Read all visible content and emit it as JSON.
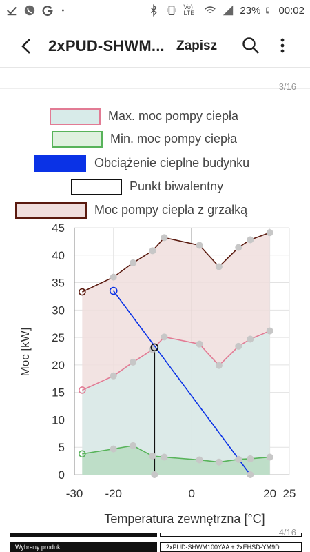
{
  "status_bar": {
    "battery": "23%",
    "time": "00:02",
    "network": "Vo) LTE",
    "icons": [
      "check-icon",
      "phone-icon",
      "g-icon",
      "dot-icon",
      "bluetooth-icon",
      "vibrate-icon",
      "lte-icon",
      "wifi-icon",
      "signal-icon",
      "battery-icon"
    ]
  },
  "appbar": {
    "title": "2xPUD-SHWM...",
    "save_label": "Zapisz",
    "icons": [
      "back-icon",
      "search-icon",
      "more-vert-icon"
    ]
  },
  "pager": {
    "first": "3/16",
    "second": "4/16"
  },
  "legend": [
    {
      "label": "Max. moc pompy ciepła",
      "fill": "#d8ebe9",
      "stroke": "#e27b94"
    },
    {
      "label": "Min. moc pompy ciepła",
      "fill": "#dff1df",
      "stroke": "#58b35a"
    },
    {
      "label": "Obciążenie cieplne budynku",
      "fill": "#0a32e6",
      "stroke": "#0a32e6"
    },
    {
      "label": "Punkt biwalentny",
      "fill": "#ffffff",
      "stroke": "#111111"
    },
    {
      "label": "Moc pompy ciepła z grzałką",
      "fill": "#f0dedd",
      "stroke": "#5a1a0f"
    }
  ],
  "chart_data": {
    "type": "area",
    "xlabel": "Temperatura zewnętrzna [°C]",
    "ylabel": "Moc [kW]",
    "xlim": [
      -30,
      25
    ],
    "ylim": [
      0,
      45
    ],
    "x_ticks": [
      -30,
      -20,
      0,
      20,
      25
    ],
    "y_ticks": [
      0,
      5,
      10,
      15,
      20,
      25,
      30,
      35,
      40,
      45
    ],
    "grid": true,
    "series": [
      {
        "name": "Moc pompy ciepła z grzałką",
        "color": "#5a1a0f",
        "fill": "#f0dedd",
        "x": [
          -28,
          -20,
          -15,
          -10,
          -7,
          2,
          7,
          12,
          15,
          20
        ],
        "y": [
          33.3,
          36.0,
          38.6,
          40.8,
          43.2,
          41.8,
          37.9,
          41.4,
          42.8,
          44.1
        ]
      },
      {
        "name": "Max. moc pompy ciepła",
        "color": "#e27b94",
        "fill": "#d8ebe9",
        "x": [
          -28,
          -20,
          -15,
          -10,
          -7,
          2,
          7,
          12,
          15,
          20
        ],
        "y": [
          15.4,
          18.0,
          20.5,
          22.8,
          25.1,
          23.8,
          19.9,
          23.4,
          24.7,
          26.2
        ]
      },
      {
        "name": "Min. moc pompy ciepła",
        "color": "#58b35a",
        "fill": "#b9dcc2",
        "x": [
          -28,
          -20,
          -15,
          -10,
          -7,
          2,
          7,
          12,
          15,
          20
        ],
        "y": [
          3.8,
          4.7,
          5.3,
          3.4,
          3.2,
          2.7,
          2.3,
          2.8,
          2.9,
          3.2
        ]
      },
      {
        "name": "Obciążenie cieplne budynku",
        "color": "#0a32e6",
        "x": [
          -20,
          15
        ],
        "y": [
          33.5,
          0
        ]
      }
    ],
    "bivalent_point": {
      "x": -9.5,
      "y": 23.2
    }
  },
  "footer": {
    "selected_label": "Wybrany produkt:",
    "product": "2xPUD-SHWM100YAA + 2xEHSD-YM9D"
  }
}
